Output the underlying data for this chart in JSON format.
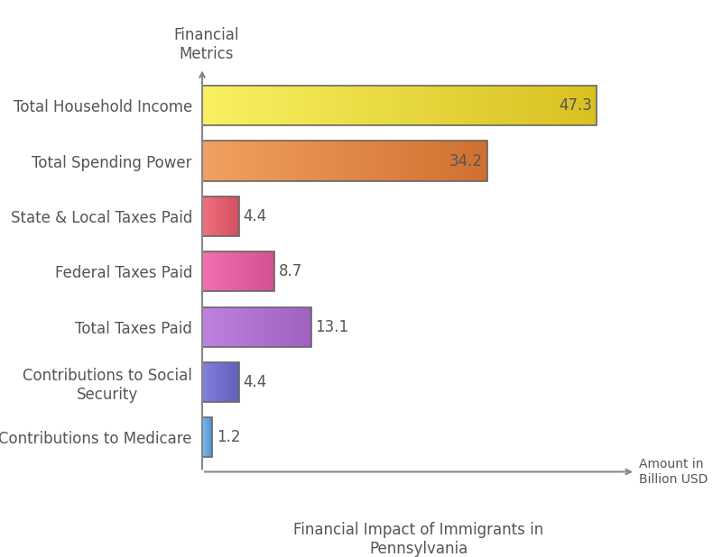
{
  "categories": [
    "Contributions to Medicare",
    "Contributions to Social\nSecurity",
    "Total Taxes Paid",
    "Federal Taxes Paid",
    "State & Local Taxes Paid",
    "Total Spending Power",
    "Total Household Income"
  ],
  "values": [
    1.2,
    4.4,
    13.1,
    8.7,
    4.4,
    34.2,
    47.3
  ],
  "bar_colors_left": [
    "#7bbcf0",
    "#8080dd",
    "#c080e0",
    "#f070b0",
    "#f07080",
    "#f0a060",
    "#f8f060"
  ],
  "bar_colors_right": [
    "#5090d0",
    "#6060bb",
    "#a060c0",
    "#d05090",
    "#d05060",
    "#d07030",
    "#d8c020"
  ],
  "bar_edgecolor": "#666666",
  "value_labels": [
    "1.2",
    "4.4",
    "13.1",
    "8.7",
    "4.4",
    "34.2",
    "47.3"
  ],
  "value_inside": [
    false,
    false,
    false,
    false,
    false,
    true,
    true
  ],
  "xlabel": "Financial Impact of Immigrants in\nPennsylvania",
  "ylabel": "Financial\nMetrics",
  "xaxis_label": "Amount in\nBillion USD",
  "xlim": [
    0,
    52
  ],
  "background_color": "#ffffff",
  "label_fontsize": 12,
  "value_fontsize": 12,
  "axis_label_fontsize": 12,
  "arrow_color": "#888888",
  "bar_height": 0.72,
  "text_color": "#555555"
}
